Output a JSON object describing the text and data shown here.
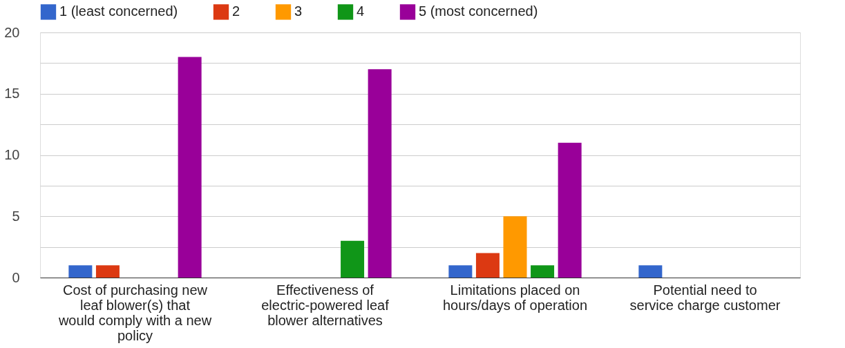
{
  "chart_data": {
    "type": "bar",
    "categories": [
      "Cost of purchasing new leaf blower(s) that would comply with a new policy",
      "Effectiveness of electric-powered leaf blower alternatives",
      "Limitations placed on hours/days of operation",
      "Potential need to service charge customer"
    ],
    "series": [
      {
        "name": "1 (least concerned)",
        "color": "#3366cc",
        "values": [
          1,
          0,
          1,
          1
        ]
      },
      {
        "name": "2",
        "color": "#dc3912",
        "values": [
          1,
          0,
          2,
          null
        ]
      },
      {
        "name": "3",
        "color": "#ff9900",
        "values": [
          0,
          0,
          5,
          null
        ]
      },
      {
        "name": "4",
        "color": "#109618",
        "values": [
          0,
          3,
          1,
          null
        ]
      },
      {
        "name": "5 (most concerned)",
        "color": "#990099",
        "values": [
          18,
          17,
          11,
          null
        ]
      }
    ],
    "ylim": [
      0,
      20
    ],
    "yticks": [
      0,
      {
        "value": 2.5,
        "label": null
      },
      5,
      {
        "value": 7.5,
        "label": null
      },
      10,
      {
        "value": 12.5,
        "label": null
      },
      15,
      {
        "value": 17.5,
        "label": null
      },
      20
    ],
    "grid": "y",
    "legend": "top"
  }
}
